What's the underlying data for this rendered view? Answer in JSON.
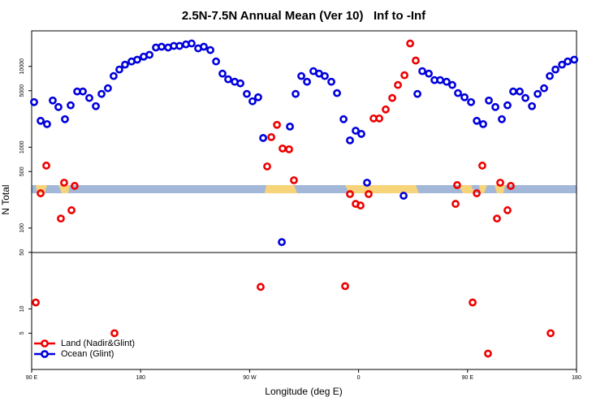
{
  "chart_data": {
    "type": "scatter",
    "title": "2.5N-7.5N Annual Mean (Ver 10)   Inf to -Inf",
    "x_label": "Longitude (deg E)",
    "y_label": "N Total",
    "log_y": true,
    "xlim": [
      90,
      540
    ],
    "xticks": [
      {
        "value": 90,
        "label": "90 E"
      },
      {
        "value": 180,
        "label": "180"
      },
      {
        "value": 270,
        "label": "90 W"
      },
      {
        "value": 360,
        "label": "0"
      },
      {
        "value": 450,
        "label": "90 E"
      },
      {
        "value": 540,
        "label": "180"
      }
    ],
    "ylim": [
      1.78,
      27500
    ],
    "yticks": [
      5,
      10,
      50,
      100,
      500,
      1000,
      5000,
      10000
    ],
    "legend": "bottom-left",
    "series": [
      {
        "name": "Land (Nadir&Glint)",
        "color": "#ee0000",
        "x": [
          93.4,
          97.4,
          102.1,
          114.1,
          116.8,
          122.9,
          125.5,
          158.4,
          279.1,
          284.5,
          287.9,
          292.6,
          297.2,
          302.6,
          306.6,
          348.9,
          352.9,
          357.6,
          361.6,
          368.3,
          372.4,
          377.1,
          382.4,
          387.8,
          392.5,
          397.9,
          402.6,
          407.2,
          440.1,
          441.4,
          454.2,
          457.6,
          462.2,
          466.9,
          474.3,
          477.0,
          483.0,
          485.7,
          518.6
        ],
        "values": [
          12,
          269,
          592,
          131,
          364,
          166,
          332,
          5,
          18.7,
          578,
          1333,
          1890,
          964,
          942,
          390,
          19.1,
          263,
          199,
          190,
          263,
          2270,
          2270,
          2930,
          4060,
          5880,
          7770,
          19200,
          11800,
          199,
          340,
          12,
          269,
          592,
          2.8,
          131,
          364,
          166,
          332,
          5
        ]
      },
      {
        "name": "Ocean (Glint)",
        "color": "#0000dd",
        "x": [
          92.0,
          97.4,
          102.7,
          107.4,
          112.1,
          117.5,
          122.2,
          127.6,
          132.3,
          137.6,
          143.0,
          147.7,
          153.0,
          157.7,
          162.4,
          167.1,
          172.5,
          177.2,
          182.5,
          187.3,
          192.6,
          197.3,
          202.7,
          207.4,
          212.1,
          217.4,
          222.1,
          227.5,
          232.2,
          237.6,
          242.3,
          247.6,
          252.3,
          257.7,
          262.4,
          267.7,
          272.4,
          277.1,
          281.2,
          296.6,
          303.3,
          308.0,
          312.7,
          317.4,
          322.7,
          327.4,
          332.1,
          337.5,
          342.2,
          347.6,
          352.9,
          357.6,
          362.3,
          367.0,
          397.2,
          408.6,
          412.6,
          418.0,
          422.7,
          427.4,
          432.7,
          437.4,
          442.1,
          447.5,
          452.9,
          457.6,
          462.9,
          467.6,
          473.0,
          478.3,
          483.0,
          487.7,
          493.1,
          497.8,
          503.2,
          507.9,
          513.2,
          517.9,
          522.6,
          528.0,
          532.7,
          538.1
        ],
        "values": [
          3614,
          2120,
          1930,
          3785,
          3140,
          2220,
          3300,
          4890,
          4890,
          4060,
          3220,
          4560,
          5360,
          7590,
          9140,
          10500,
          11500,
          12100,
          13200,
          13900,
          17100,
          17500,
          17100,
          17900,
          17900,
          18700,
          19200,
          16700,
          17500,
          15900,
          11500,
          8130,
          6920,
          6450,
          6160,
          4560,
          3700,
          4150,
          1300,
          67,
          1800,
          4560,
          7590,
          6450,
          8730,
          8130,
          7590,
          6450,
          4670,
          2220,
          1215,
          1600,
          1460,
          364,
          251,
          4560,
          8730,
          8130,
          6760,
          6760,
          6450,
          5880,
          4670,
          4150,
          3614,
          2120,
          1930,
          3785,
          3140,
          2220,
          3300,
          4890,
          4890,
          4060,
          3220,
          4560,
          5360,
          7590,
          9140,
          10500,
          11500,
          12100
        ]
      }
    ]
  }
}
